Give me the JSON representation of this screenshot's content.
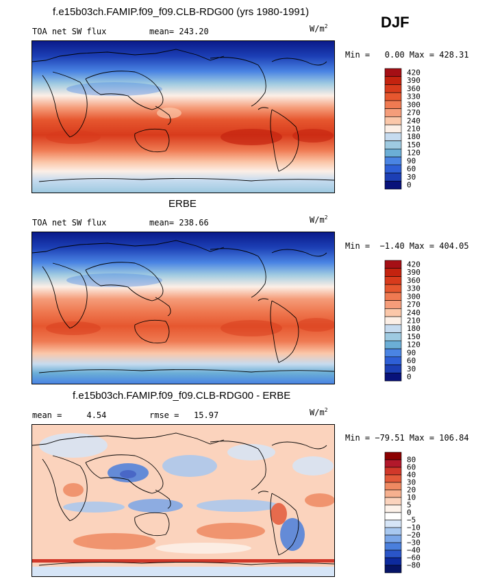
{
  "season": "DJF",
  "panels": [
    {
      "title": "f.e15b03ch.FAMIP.f09_f09.CLB-RDG00 (yrs 1980-1991)",
      "left_label": "TOA net SW flux",
      "stat_label": "mean=",
      "stat_value": "243.20",
      "units": "W/m",
      "units_sup": "2",
      "minmax": "Min =   0.00 Max = 428.31",
      "colorbar": {
        "labels": [
          "420",
          "390",
          "360",
          "330",
          "300",
          "270",
          "240",
          "210",
          "180",
          "150",
          "120",
          "90",
          "60",
          "30",
          "0"
        ],
        "colors": [
          "#a50f15",
          "#c4230f",
          "#d83b1c",
          "#e6572f",
          "#ef7a52",
          "#f59d7a",
          "#fbc7a9",
          "#fcefe6",
          "#c6dbef",
          "#9ecae1",
          "#6baed6",
          "#4a84e3",
          "#2e5fd6",
          "#1c3fb5",
          "#08127a"
        ]
      }
    },
    {
      "title": "ERBE",
      "left_label": "TOA net SW flux",
      "stat_label": "mean=",
      "stat_value": "238.66",
      "units": "W/m",
      "units_sup": "2",
      "minmax": "Min =  −1.40 Max = 404.05",
      "colorbar": {
        "labels": [
          "420",
          "390",
          "360",
          "330",
          "300",
          "270",
          "240",
          "210",
          "180",
          "150",
          "120",
          "90",
          "60",
          "30",
          "0"
        ],
        "colors": [
          "#a50f15",
          "#c4230f",
          "#d83b1c",
          "#e6572f",
          "#ef7a52",
          "#f59d7a",
          "#fbc7a9",
          "#fcefe6",
          "#c6dbef",
          "#9ecae1",
          "#6baed6",
          "#4a84e3",
          "#2e5fd6",
          "#1c3fb5",
          "#08127a"
        ]
      }
    },
    {
      "title": "f.e15b03ch.FAMIP.f09_f09.CLB-RDG00 - ERBE",
      "left_label": "mean =     4.54",
      "stat_label": "rmse =",
      "stat_value": "15.97",
      "units": "W/m",
      "units_sup": "2",
      "minmax": "Min = −79.51 Max = 106.84",
      "colorbar": {
        "labels": [
          "80",
          "60",
          "40",
          "30",
          "20",
          "10",
          "5",
          "0",
          "−5",
          "−10",
          "−20",
          "−30",
          "−40",
          "−60",
          "−80"
        ],
        "colors": [
          "#8b0000",
          "#b2182b",
          "#d1382a",
          "#e35a3a",
          "#ef8a62",
          "#f6b08f",
          "#fbd3bd",
          "#fdf2ea",
          "#ffffff",
          "#d6e5f7",
          "#a8c8f0",
          "#7aa6e8",
          "#4a7fdc",
          "#2a55c8",
          "#0d2a9e",
          "#061466"
        ]
      }
    }
  ],
  "chart_data": [
    {
      "type": "heatmap",
      "title": "f.e15b03ch.FAMIP.f09_f09.CLB-RDG00 (yrs 1980-1991)",
      "variable": "TOA net SW flux",
      "units": "W/m2",
      "season": "DJF",
      "mean": 243.2,
      "min": 0.0,
      "max": 428.31,
      "levels": [
        0,
        30,
        60,
        90,
        120,
        150,
        180,
        210,
        240,
        270,
        300,
        330,
        360,
        390,
        420
      ],
      "approx_zonal_profile": [
        {
          "lat": 90,
          "value": 0
        },
        {
          "lat": 60,
          "value": 60
        },
        {
          "lat": 40,
          "value": 120
        },
        {
          "lat": 20,
          "value": 240
        },
        {
          "lat": 0,
          "value": 330
        },
        {
          "lat": -20,
          "value": 380
        },
        {
          "lat": -40,
          "value": 300
        },
        {
          "lat": -60,
          "value": 210
        },
        {
          "lat": -90,
          "value": 180
        }
      ]
    },
    {
      "type": "heatmap",
      "title": "ERBE",
      "variable": "TOA net SW flux",
      "units": "W/m2",
      "season": "DJF",
      "mean": 238.66,
      "min": -1.4,
      "max": 404.05,
      "levels": [
        0,
        30,
        60,
        90,
        120,
        150,
        180,
        210,
        240,
        270,
        300,
        330,
        360,
        390,
        420
      ],
      "approx_zonal_profile": [
        {
          "lat": 90,
          "value": 0
        },
        {
          "lat": 60,
          "value": 60
        },
        {
          "lat": 40,
          "value": 120
        },
        {
          "lat": 20,
          "value": 240
        },
        {
          "lat": 0,
          "value": 320
        },
        {
          "lat": -20,
          "value": 360
        },
        {
          "lat": -40,
          "value": 300
        },
        {
          "lat": -60,
          "value": 210
        },
        {
          "lat": -90,
          "value": 150
        }
      ]
    },
    {
      "type": "heatmap",
      "title": "f.e15b03ch.FAMIP.f09_f09.CLB-RDG00 - ERBE",
      "units": "W/m2",
      "season": "DJF",
      "mean": 4.54,
      "rmse": 15.97,
      "min": -79.51,
      "max": 106.84,
      "levels": [
        -80,
        -60,
        -40,
        -30,
        -20,
        -10,
        -5,
        0,
        5,
        10,
        20,
        30,
        40,
        60,
        80
      ]
    }
  ]
}
